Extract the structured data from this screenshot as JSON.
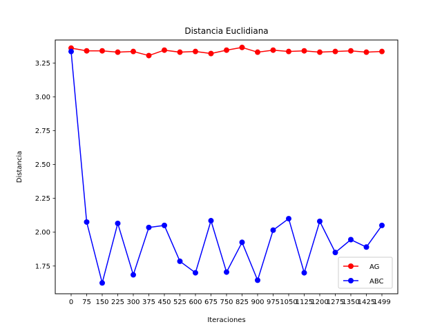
{
  "chart_data": {
    "type": "line",
    "title": "Distancia Euclidiana",
    "xlabel": "Iteraciones",
    "ylabel": "Distancia",
    "x_tick_labels": [
      "0",
      "75",
      "150",
      "225",
      "300",
      "375",
      "450",
      "525",
      "600",
      "675",
      "750",
      "825",
      "900",
      "975",
      "1050",
      "1125",
      "1200",
      "1275",
      "1350",
      "1425",
      "1499"
    ],
    "y_ticks": [
      1.75,
      2.0,
      2.25,
      2.5,
      2.75,
      3.0,
      3.25
    ],
    "y_tick_labels": [
      "1.75",
      "2.00",
      "2.25",
      "2.50",
      "2.75",
      "3.00",
      "3.25"
    ],
    "ylim": [
      1.545,
      3.42
    ],
    "grid": false,
    "legend_position": "lower right",
    "series": [
      {
        "name": "AG",
        "color": "#ff0000",
        "marker": "circle",
        "values": [
          3.36,
          3.34,
          3.34,
          3.33,
          3.335,
          3.305,
          3.345,
          3.33,
          3.335,
          3.32,
          3.345,
          3.365,
          3.33,
          3.345,
          3.335,
          3.34,
          3.33,
          3.335,
          3.34,
          3.33,
          3.335
        ]
      },
      {
        "name": "ABC",
        "color": "#0000ff",
        "marker": "circle",
        "values": [
          3.335,
          2.075,
          1.625,
          2.065,
          1.685,
          2.035,
          2.05,
          1.785,
          1.7,
          2.085,
          1.705,
          1.925,
          1.645,
          2.015,
          2.1,
          1.7,
          2.08,
          1.85,
          1.945,
          1.89,
          2.05
        ]
      }
    ]
  }
}
